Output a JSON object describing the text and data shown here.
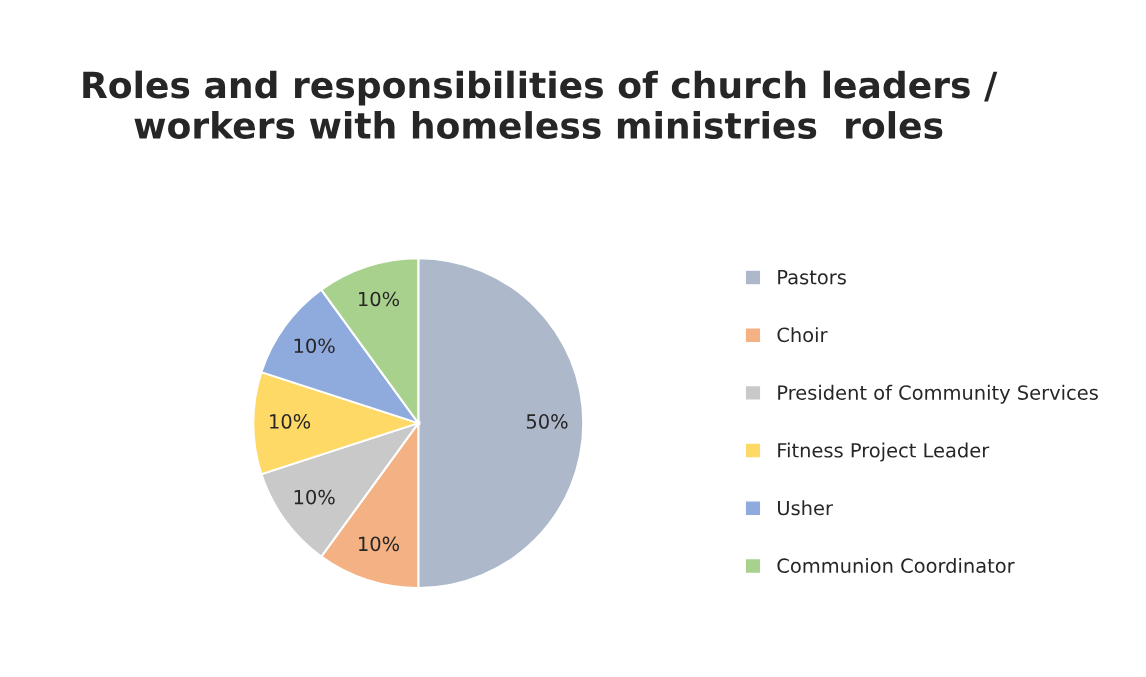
{
  "chart_data": {
    "type": "pie",
    "title": "Roles and responsibilities of church leaders / workers with homeless ministries  roles",
    "categories": [
      "Pastors",
      "Choir",
      "President of Community Services",
      "Fitness Project Leader",
      "Usher",
      "Communion Coordinator"
    ],
    "values": [
      50,
      10,
      10,
      10,
      10,
      10
    ],
    "colors": [
      "#adb9ca",
      "#f4b183",
      "#c9c9c9",
      "#ffd966",
      "#8faadc",
      "#a9d18e"
    ],
    "value_labels": [
      "50%",
      "10%",
      "10%",
      "10%",
      "10%",
      "10%"
    ],
    "legend": "right"
  }
}
